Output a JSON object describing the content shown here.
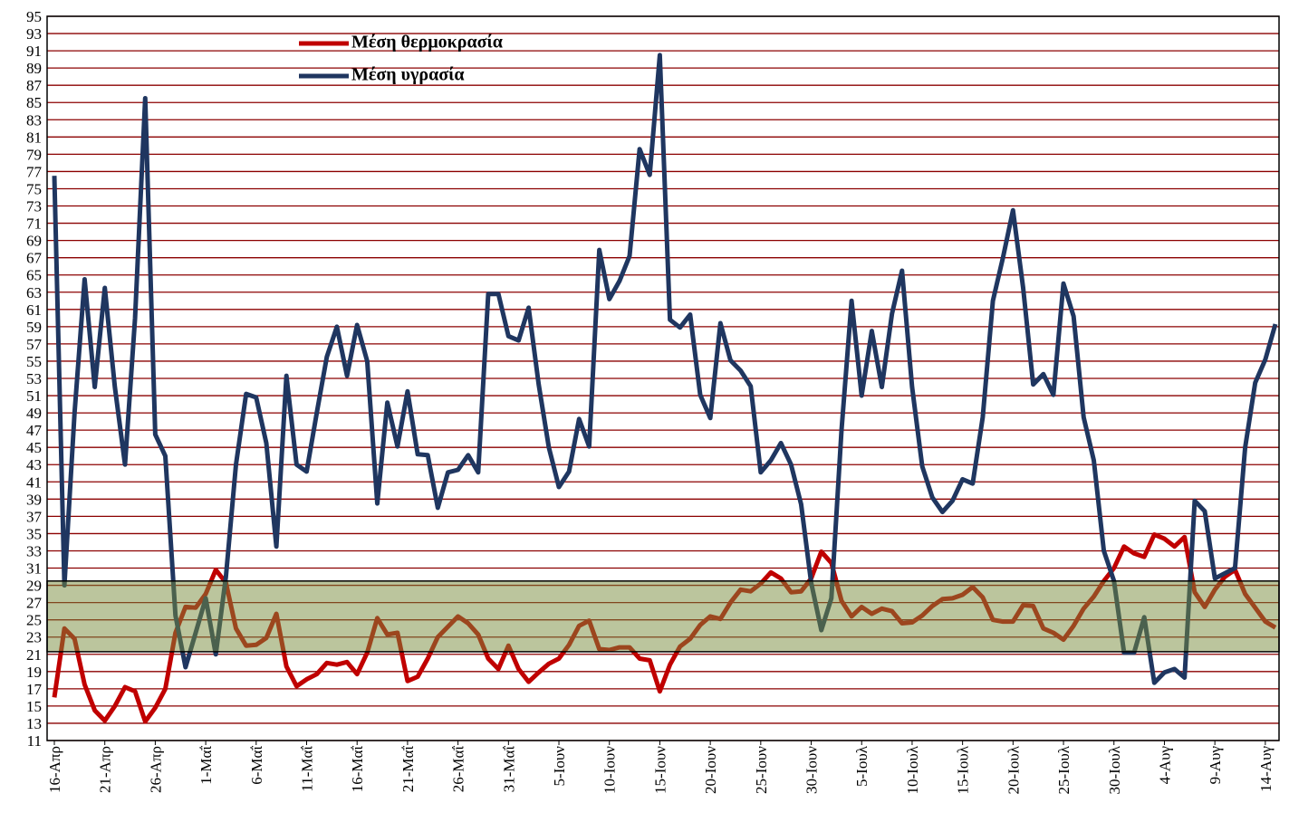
{
  "chart_data": {
    "type": "line",
    "categories": [
      "16-Απρ",
      null,
      null,
      null,
      null,
      "21-Απρ",
      null,
      null,
      null,
      null,
      "26-Απρ",
      null,
      null,
      null,
      null,
      "1-Μαΐ",
      null,
      null,
      null,
      null,
      "6-Μαΐ",
      null,
      null,
      null,
      null,
      "11-Μαΐ",
      null,
      null,
      null,
      null,
      "16-Μαΐ",
      null,
      null,
      null,
      null,
      "21-Μαΐ",
      null,
      null,
      null,
      null,
      "26-Μαΐ",
      null,
      null,
      null,
      null,
      "31-Μαΐ",
      null,
      null,
      null,
      null,
      "5-Ιουν",
      null,
      null,
      null,
      null,
      "10-Ιουν",
      null,
      null,
      null,
      null,
      "15-Ιουν",
      null,
      null,
      null,
      null,
      "20-Ιουν",
      null,
      null,
      null,
      null,
      "25-Ιουν",
      null,
      null,
      null,
      null,
      "30-Ιουν",
      null,
      null,
      null,
      null,
      "5-Ιουλ",
      null,
      null,
      null,
      null,
      "10-Ιουλ",
      null,
      null,
      null,
      null,
      "15-Ιουλ",
      null,
      null,
      null,
      null,
      "20-Ιουλ",
      null,
      null,
      null,
      null,
      "25-Ιουλ",
      null,
      null,
      null,
      null,
      "30-Ιουλ",
      null,
      null,
      null,
      null,
      "4-Αυγ",
      null,
      null,
      null,
      null,
      "9-Αυγ",
      null,
      null,
      null,
      null,
      "14-Αυγ",
      null
    ],
    "series": [
      {
        "name": "Μέση θερμοκρασία",
        "color": "#c00000",
        "values": [
          16,
          24,
          22.8,
          17.5,
          14.5,
          13.3,
          15,
          17.2,
          16.7,
          13.2,
          14.8,
          17,
          23.5,
          26.5,
          26.4,
          28,
          30.8,
          29.3,
          24,
          22,
          22.1,
          22.9,
          25.7,
          19.6,
          17.3,
          18.1,
          18.7,
          20,
          19.8,
          20.1,
          18.7,
          21.2,
          25.2,
          23.3,
          23.5,
          17.9,
          18.4,
          20.5,
          23,
          24.2,
          25.4,
          24.6,
          23.3,
          20.5,
          19.3,
          22,
          19.3,
          17.8,
          18.9,
          19.9,
          20.5,
          22.1,
          24.3,
          24.9,
          21.6,
          21.5,
          21.8,
          21.8,
          20.5,
          20.3,
          16.7,
          19.8,
          21.9,
          22.8,
          24.4,
          25.4,
          25.1,
          27,
          28.5,
          28.3,
          29.2,
          30.5,
          29.8,
          28.2,
          28.3,
          29.8,
          32.9,
          31.6,
          27.2,
          25.4,
          26.5,
          25.7,
          26.3,
          26,
          24.6,
          24.7,
          25.5,
          26.6,
          27.4,
          27.5,
          27.9,
          28.8,
          27.6,
          25,
          24.8,
          24.8,
          26.7,
          26.6,
          24,
          23.5,
          22.7,
          24.3,
          26.3,
          27.7,
          29.5,
          31,
          33.5,
          32.7,
          32.3,
          34.9,
          34.4,
          33.5,
          34.6,
          28.2,
          26.5,
          28.5,
          30,
          30.8,
          28,
          26.4,
          24.8,
          24.1
        ]
      },
      {
        "name": "Μέση υγρασία",
        "color": "#1f3660",
        "values": [
          76.5,
          29,
          49,
          64.5,
          52,
          63.5,
          52,
          43,
          60,
          85.5,
          46.5,
          44,
          25.5,
          19.5,
          23.5,
          27.5,
          21,
          30,
          43,
          51.2,
          50.8,
          45.5,
          33.5,
          53.3,
          43,
          42.2,
          49,
          55.5,
          59,
          53.3,
          59.2,
          55,
          38.5,
          50.2,
          45.1,
          51.5,
          44.2,
          44.1,
          38,
          42.1,
          42.4,
          44.1,
          42.1,
          62.8,
          62.8,
          57.9,
          57.4,
          61.2,
          52.3,
          45,
          40.4,
          42.2,
          48.3,
          45.1,
          67.9,
          62.2,
          64.3,
          67.2,
          79.6,
          76.6,
          90.5,
          59.8,
          58.9,
          60.4,
          51.1,
          48.4,
          59.4,
          55.1,
          53.9,
          52.1,
          42.1,
          43.5,
          45.5,
          43,
          38.4,
          29.3,
          23.8,
          27.5,
          47,
          62,
          51,
          58.5,
          52,
          60.5,
          65.5,
          52,
          42.8,
          39.2,
          37.5,
          38.8,
          41.3,
          40.8,
          48.5,
          62,
          67,
          72.5,
          63.5,
          52.3,
          53.5,
          51.1,
          64,
          60.2,
          48.5,
          43.5,
          33,
          29.5,
          21.2,
          21.2,
          25.3,
          17.7,
          18.9,
          19.3,
          18.3,
          38.8,
          37.6,
          29.8,
          30.4,
          31,
          45,
          52.5,
          55.2,
          59.3
        ]
      }
    ],
    "ylim": [
      11,
      95
    ],
    "yticks": [
      11,
      13,
      15,
      17,
      19,
      21,
      23,
      25,
      27,
      29,
      31,
      33,
      35,
      37,
      39,
      41,
      43,
      45,
      47,
      49,
      51,
      53,
      55,
      57,
      59,
      61,
      63,
      65,
      67,
      69,
      71,
      73,
      75,
      77,
      79,
      81,
      83,
      85,
      87,
      89,
      91,
      93,
      95
    ],
    "grid": true,
    "grid_color": "#8b0000",
    "highlight_band": {
      "from": 21.3,
      "to": 29.5,
      "color": "rgba(120,140,60,0.5)"
    },
    "legend": "upper left"
  }
}
